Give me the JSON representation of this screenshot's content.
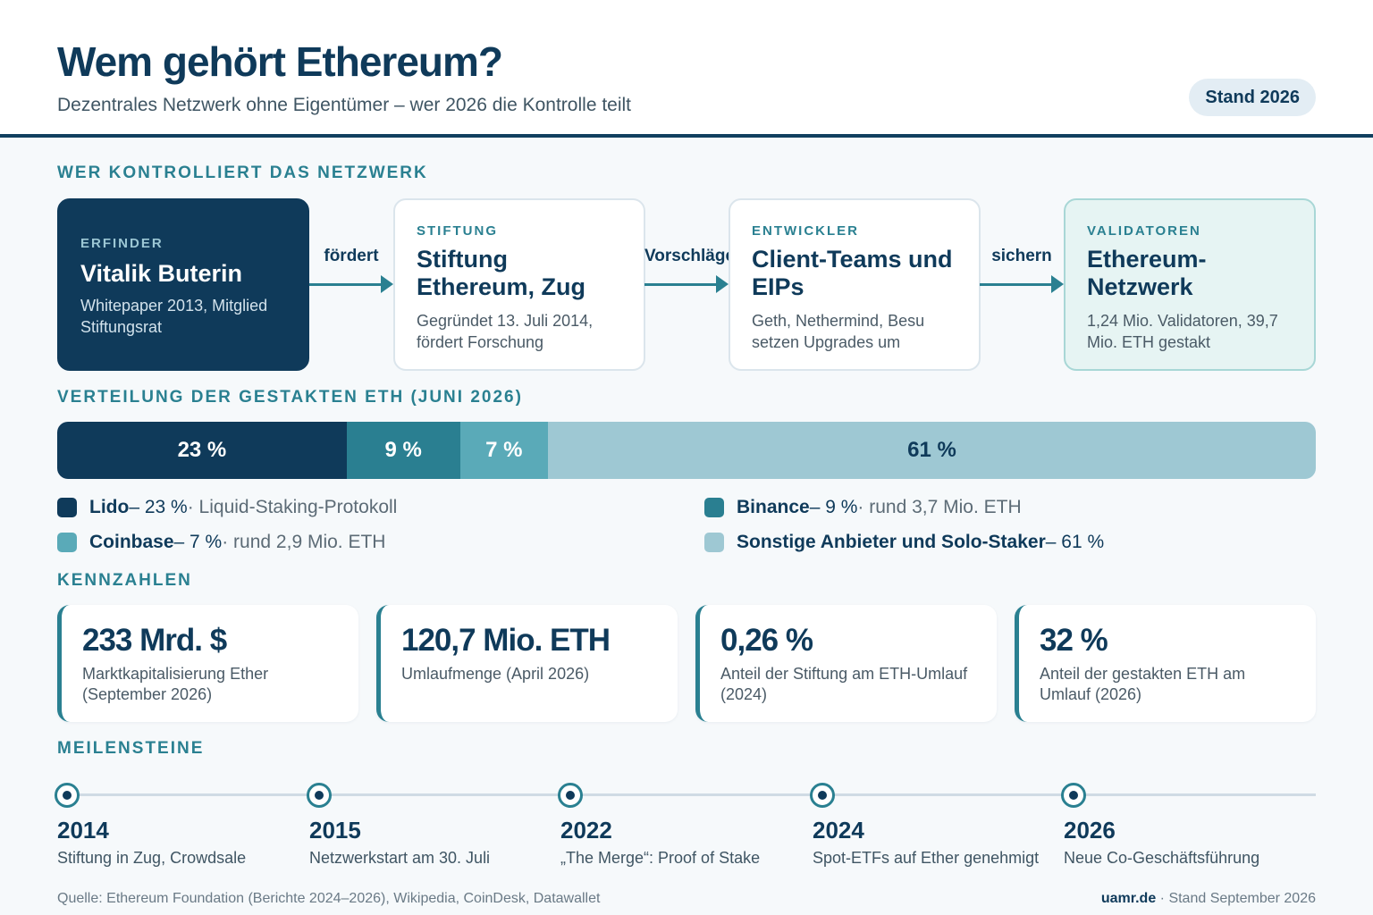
{
  "header": {
    "title": "Wem gehört Ethereum?",
    "subtitle": "Dezentrales Netzwerk ohne Eigentümer – wer 2026 die Kontrolle teilt",
    "badge": "Stand 2026"
  },
  "sections": {
    "control": "WER KONTROLLIERT DAS NETZWERK",
    "distribution": "VERTEILUNG DER GESTAKTEN ETH (JUNI 2026)",
    "kpis": "KENNZAHLEN",
    "milestones": "MEILENSTEINE"
  },
  "flow": [
    {
      "tag": "ERFINDER",
      "name": "Vitalik Buterin",
      "desc": "Whitepaper 2013, Mitglied Stiftungsrat"
    },
    {
      "tag": "STIFTUNG",
      "name": "Stiftung Ethereum, Zug",
      "desc": "Gegründet 13. Juli 2014, fördert Forschung"
    },
    {
      "tag": "ENTWICKLER",
      "name": "Client-Teams und EIPs",
      "desc": "Geth, Nethermind, Besu setzen Upgrades um"
    },
    {
      "tag": "VALIDATOREN",
      "name": "Ethereum-Netzwerk",
      "desc": "1,24 Mio. Validatoren, 39,7 Mio. ETH gestakt"
    }
  ],
  "arrows": [
    "fördert",
    "Vorschläge",
    "sichern"
  ],
  "chart_data": {
    "type": "bar",
    "orientation": "horizontal-stacked",
    "title": "VERTEILUNG DER GESTAKTEN ETH (JUNI 2026)",
    "unit": "%",
    "series": [
      {
        "name": "Lido",
        "value": 23,
        "label": "23 %",
        "color": "#0f3a5a"
      },
      {
        "name": "Binance",
        "value": 9,
        "label": "9 %",
        "color": "#2a7f91"
      },
      {
        "name": "Coinbase",
        "value": 7,
        "label": "7 %",
        "color": "#5aaab8"
      },
      {
        "name": "Sonstige Anbieter und Solo-Staker",
        "value": 61,
        "label": "61 %",
        "color": "#9ec8d3"
      }
    ]
  },
  "legend": [
    {
      "name": "Lido",
      "pct": " – 23 %",
      "note": " · Liquid-Staking-Protokoll"
    },
    {
      "name": "Binance",
      "pct": " – 9 %",
      "note": " · rund 3,7 Mio. ETH"
    },
    {
      "name": "Coinbase",
      "pct": " – 7 %",
      "note": " · rund 2,9 Mio. ETH"
    },
    {
      "name": "Sonstige Anbieter und Solo-Staker",
      "pct": " – 61 %",
      "note": ""
    }
  ],
  "kpis": [
    {
      "value": "233 Mrd. $",
      "label": "Marktkapitalisierung Ether (September 2026)"
    },
    {
      "value": "120,7 Mio. ETH",
      "label": "Umlaufmenge (April 2026)"
    },
    {
      "value": "0,26 %",
      "label": "Anteil der Stiftung am ETH-Umlauf (2024)"
    },
    {
      "value": "32 %",
      "label": "Anteil der gestakten ETH am Umlauf (2026)"
    }
  ],
  "milestones": [
    {
      "year": "2014",
      "text": "Stiftung in Zug, Crowdsale"
    },
    {
      "year": "2015",
      "text": "Netzwerkstart am 30. Juli"
    },
    {
      "year": "2022",
      "text": "„The Merge“: Proof of Stake"
    },
    {
      "year": "2024",
      "text": "Spot-ETFs auf Ether genehmigt"
    },
    {
      "year": "2026",
      "text": "Neue Co-Geschäftsführung"
    }
  ],
  "footer": {
    "source": "Quelle: Ethereum Foundation (Berichte 2024–2026), Wikipedia, CoinDesk, Datawallet",
    "brand": "uamr.de",
    "stand": " · Stand September 2026"
  }
}
